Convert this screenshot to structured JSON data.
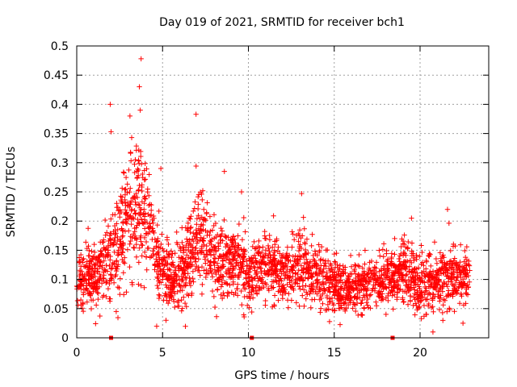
{
  "chart_data": {
    "type": "scatter",
    "title": "Day 019 of 2021, SRMTID for receiver bch1",
    "xlabel": "GPS time / hours",
    "ylabel": "SRMTID / TECUs",
    "xlim": [
      0,
      24
    ],
    "ylim": [
      0,
      0.5
    ],
    "xticks": [
      0,
      5,
      10,
      15,
      20
    ],
    "xtick_labels": [
      "0",
      "5",
      "10",
      "15",
      "20"
    ],
    "yticks": [
      0,
      0.05,
      0.1,
      0.15,
      0.2,
      0.25,
      0.3,
      0.35,
      0.4,
      0.45,
      0.5
    ],
    "ytick_labels": [
      "0",
      "0.05",
      "0.1",
      "0.15",
      "0.2",
      "0.25",
      "0.3",
      "0.35",
      "0.4",
      "0.45",
      "0.5"
    ],
    "grid": true,
    "marker": "+",
    "color": "#ff0000",
    "zero_markers_x": [
      2.0,
      10.2,
      18.4
    ],
    "envelope": {
      "x": [
        0,
        0.5,
        1,
        1.5,
        2,
        2.5,
        3,
        3.5,
        4,
        4.5,
        5,
        5.5,
        6,
        6.5,
        7,
        7.5,
        8,
        8.5,
        9,
        9.5,
        10,
        10.5,
        11,
        11.5,
        12,
        12.5,
        13,
        13.5,
        14,
        14.5,
        15,
        15.5,
        16,
        16.5,
        17,
        17.5,
        18,
        18.5,
        19,
        19.5,
        20,
        20.5,
        21,
        21.5,
        22,
        22.5,
        22.9
      ],
      "center": [
        0.1,
        0.11,
        0.1,
        0.13,
        0.14,
        0.17,
        0.21,
        0.24,
        0.22,
        0.17,
        0.12,
        0.1,
        0.11,
        0.14,
        0.17,
        0.15,
        0.13,
        0.13,
        0.13,
        0.12,
        0.11,
        0.11,
        0.12,
        0.12,
        0.11,
        0.11,
        0.12,
        0.11,
        0.11,
        0.1,
        0.09,
        0.085,
        0.085,
        0.09,
        0.095,
        0.1,
        0.1,
        0.11,
        0.11,
        0.1,
        0.09,
        0.09,
        0.1,
        0.1,
        0.11,
        0.1,
        0.1
      ],
      "spread": [
        0.04,
        0.045,
        0.04,
        0.05,
        0.06,
        0.07,
        0.08,
        0.09,
        0.08,
        0.06,
        0.05,
        0.04,
        0.045,
        0.055,
        0.07,
        0.06,
        0.05,
        0.05,
        0.05,
        0.045,
        0.045,
        0.045,
        0.045,
        0.045,
        0.045,
        0.045,
        0.05,
        0.045,
        0.04,
        0.04,
        0.035,
        0.035,
        0.035,
        0.035,
        0.04,
        0.04,
        0.04,
        0.045,
        0.045,
        0.04,
        0.04,
        0.04,
        0.04,
        0.045,
        0.045,
        0.04,
        0.035
      ]
    },
    "notable_points": [
      {
        "x": 3.75,
        "y": 0.478
      },
      {
        "x": 1.95,
        "y": 0.4
      },
      {
        "x": 3.65,
        "y": 0.43
      },
      {
        "x": 3.7,
        "y": 0.39
      },
      {
        "x": 3.1,
        "y": 0.38
      },
      {
        "x": 6.95,
        "y": 0.383
      },
      {
        "x": 2.0,
        "y": 0.353
      },
      {
        "x": 3.2,
        "y": 0.343
      },
      {
        "x": 4.9,
        "y": 0.29
      },
      {
        "x": 8.6,
        "y": 0.285
      },
      {
        "x": 9.6,
        "y": 0.25
      },
      {
        "x": 13.1,
        "y": 0.247
      },
      {
        "x": 21.6,
        "y": 0.22
      },
      {
        "x": 19.5,
        "y": 0.205
      },
      {
        "x": 20.75,
        "y": 0.01
      },
      {
        "x": 22.5,
        "y": 0.025
      },
      {
        "x": 5.2,
        "y": 0.03
      },
      {
        "x": 2.3,
        "y": 0.045
      }
    ]
  }
}
